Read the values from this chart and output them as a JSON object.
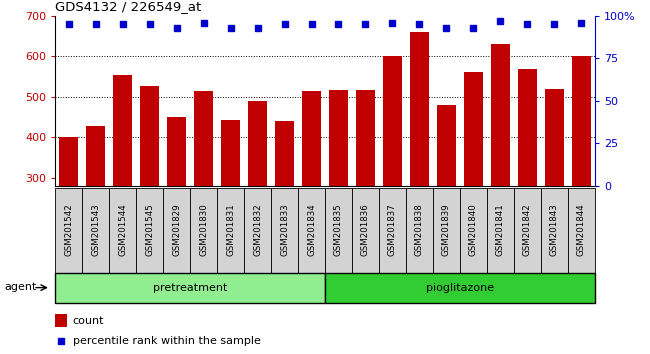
{
  "title": "GDS4132 / 226549_at",
  "samples": [
    "GSM201542",
    "GSM201543",
    "GSM201544",
    "GSM201545",
    "GSM201829",
    "GSM201830",
    "GSM201831",
    "GSM201832",
    "GSM201833",
    "GSM201834",
    "GSM201835",
    "GSM201836",
    "GSM201837",
    "GSM201838",
    "GSM201839",
    "GSM201840",
    "GSM201841",
    "GSM201842",
    "GSM201843",
    "GSM201844"
  ],
  "counts": [
    400,
    428,
    555,
    527,
    450,
    515,
    442,
    490,
    440,
    515,
    518,
    517,
    600,
    660,
    480,
    562,
    630,
    568,
    520,
    600
  ],
  "percentiles": [
    95,
    95,
    95,
    95,
    93,
    96,
    93,
    93,
    95,
    95,
    95,
    95,
    96,
    95,
    93,
    93,
    97,
    95,
    95,
    96
  ],
  "bar_color": "#c00000",
  "dot_color": "#0000cc",
  "ylim_left": [
    280,
    700
  ],
  "ylim_right": [
    0,
    100
  ],
  "yticks_left": [
    300,
    400,
    500,
    600,
    700
  ],
  "yticks_right": [
    0,
    25,
    50,
    75,
    100
  ],
  "grid_values": [
    400,
    500,
    600
  ],
  "n_pretreatment": 10,
  "n_pioglitazone": 10,
  "pretreatment_color": "#90ee90",
  "pioglitazone_color": "#32cd32",
  "agent_label": "agent",
  "pretreatment_label": "pretreatment",
  "pioglitazone_label": "pioglitazone",
  "legend_count": "count",
  "legend_percentile": "percentile rank within the sample",
  "bar_color_label": "#c00000",
  "dot_color_label": "#0000cc",
  "tick_label_bg": "#d3d3d3",
  "bar_width": 0.7
}
